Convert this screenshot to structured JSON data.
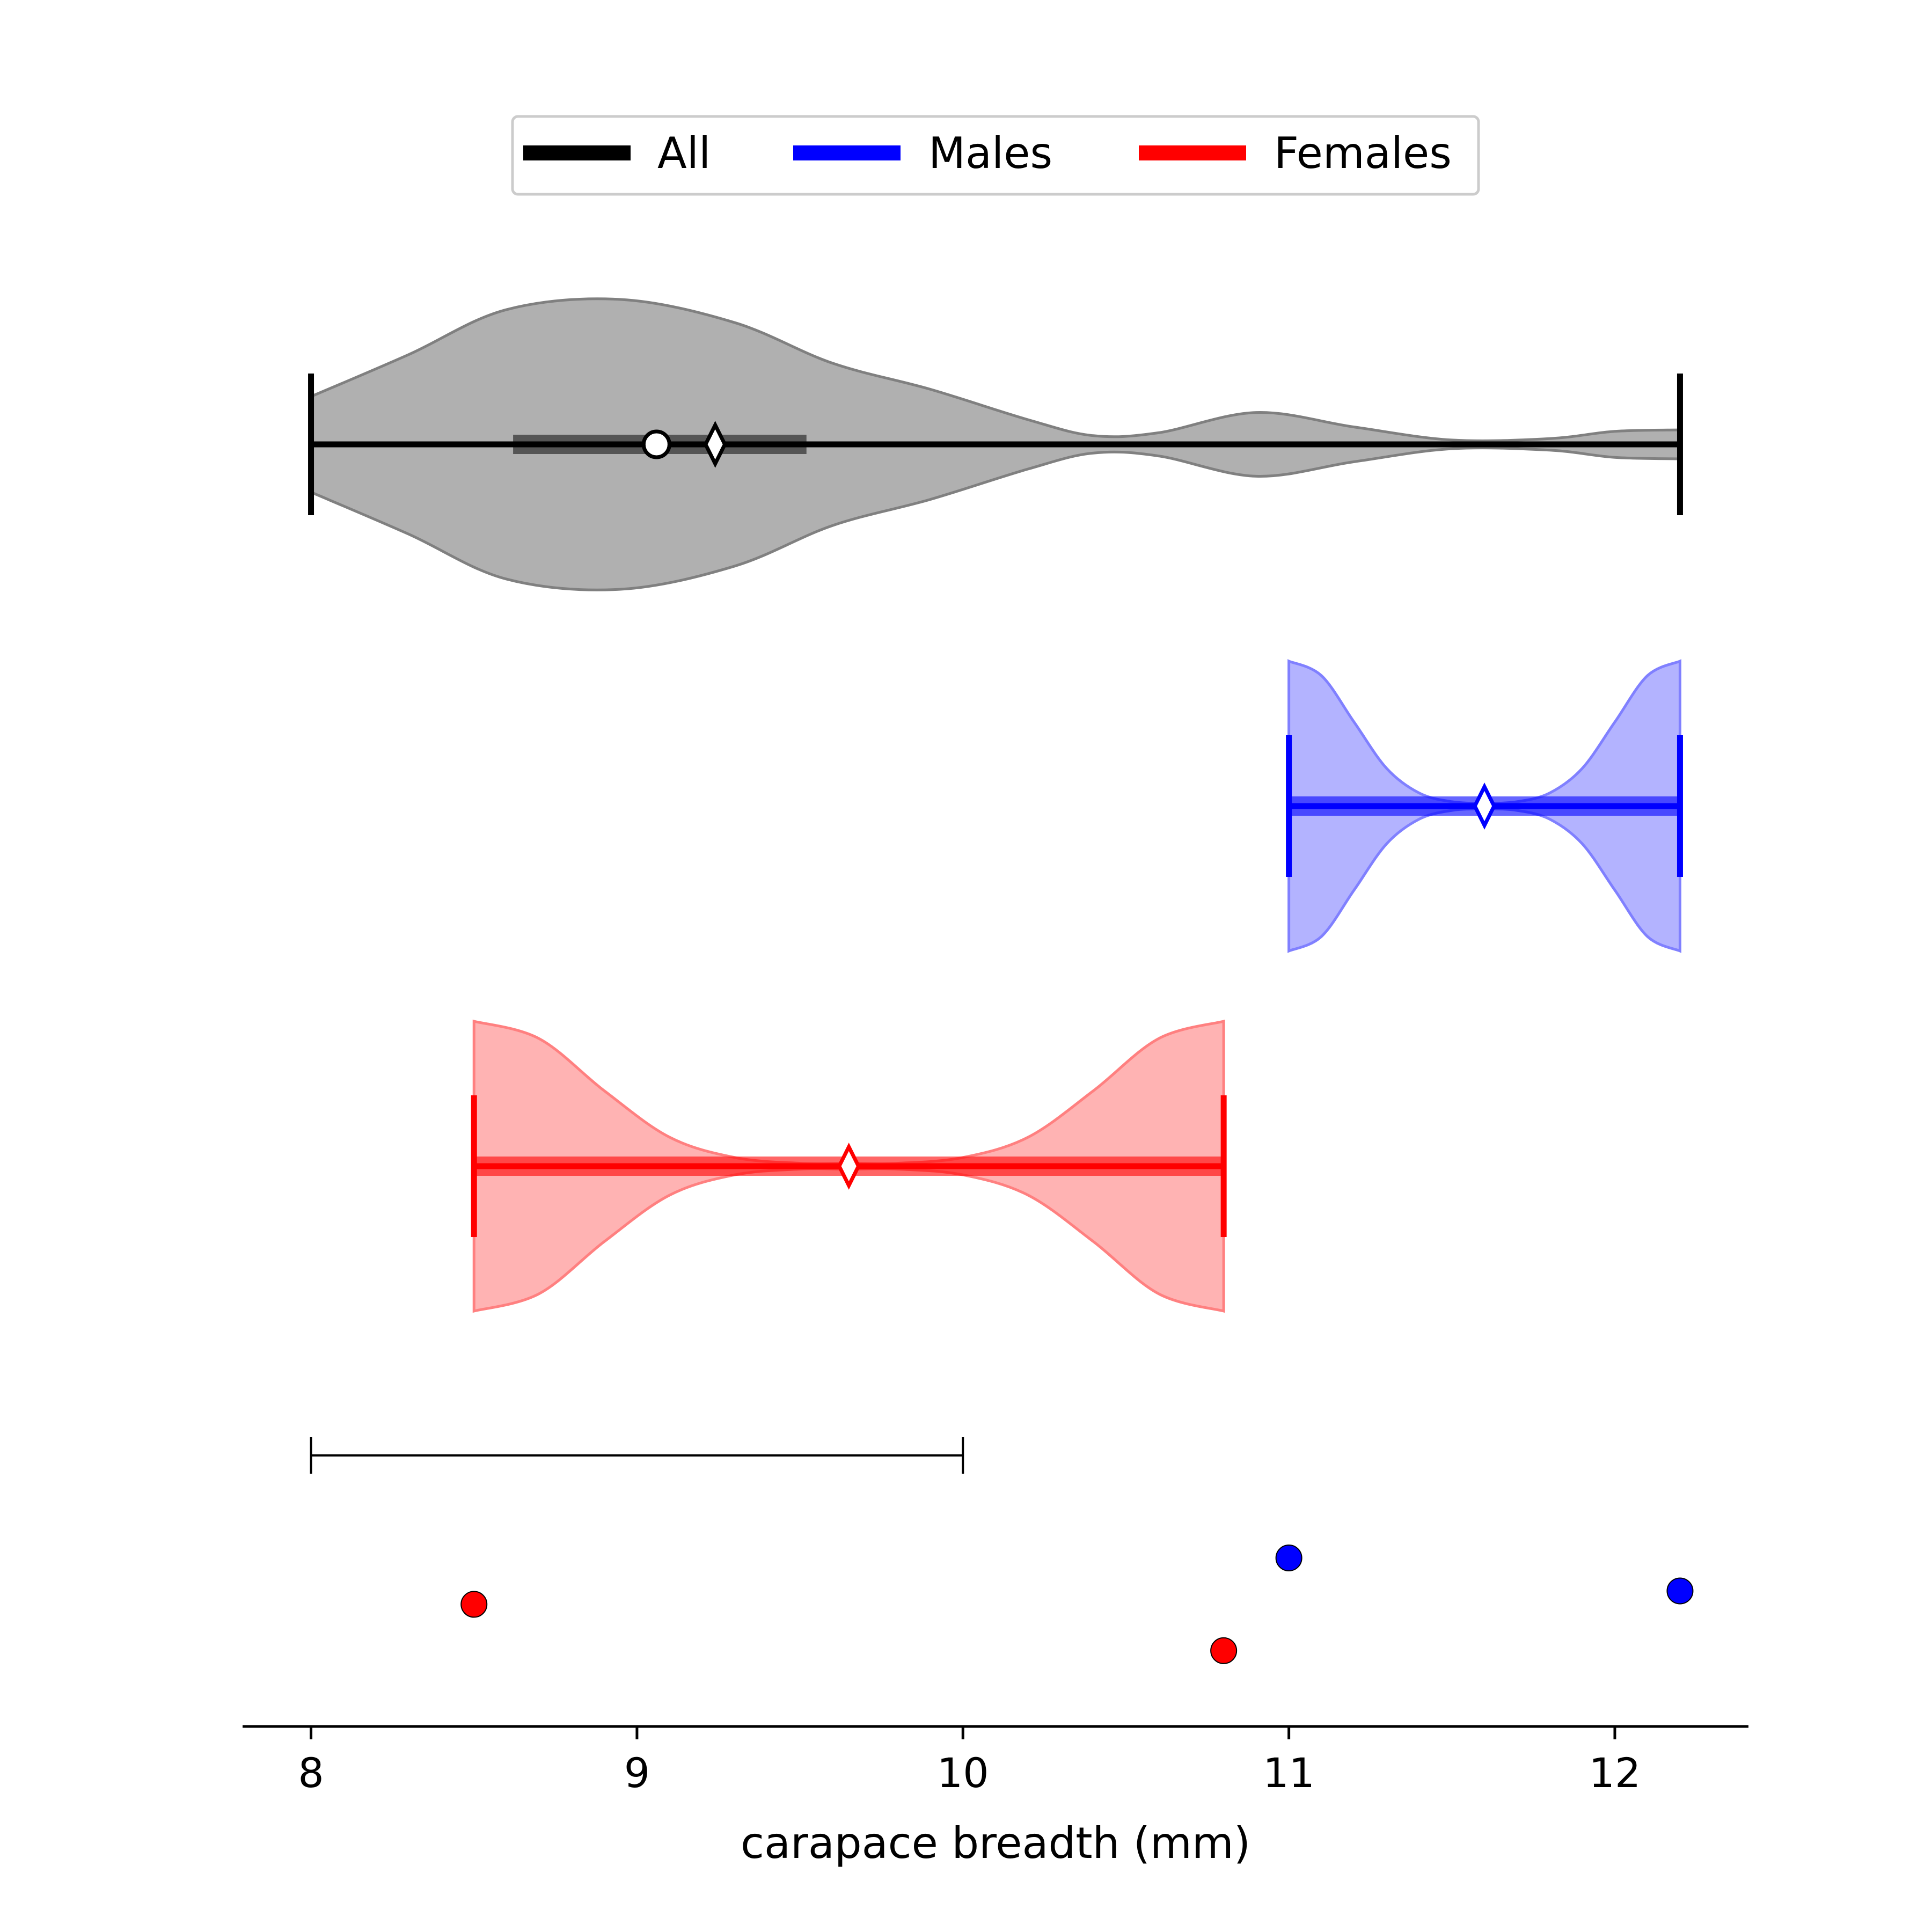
{
  "chart_data": {
    "type": "violin",
    "orientation": "horizontal",
    "xlabel": "carapace breadth (mm)",
    "xlim": [
      7.79,
      12.41
    ],
    "xticks": [
      8,
      9,
      10,
      11,
      12
    ],
    "grid": false,
    "legend": {
      "placement": "top-center",
      "entries": [
        {
          "label": "All",
          "color": "#000000"
        },
        {
          "label": "Males",
          "color": "#0000ff"
        },
        {
          "label": "Females",
          "color": "#ff0000"
        }
      ]
    },
    "violins": [
      {
        "group": "All",
        "color": "#000000",
        "fill_color": "#b0b0b0",
        "edge_color": "#808080",
        "min": 8.0,
        "max": 12.2,
        "median": 9.06,
        "mean": 9.24,
        "q1": 8.62,
        "q3": 9.52,
        "density_x": [
          8.0,
          8.3,
          8.6,
          8.95,
          9.3,
          9.6,
          9.9,
          10.2,
          10.4,
          10.6,
          10.9,
          11.2,
          11.5,
          11.8,
          12.0,
          12.2
        ],
        "density_halfwidth": [
          0.33,
          0.62,
          0.93,
          1.0,
          0.84,
          0.56,
          0.38,
          0.17,
          0.06,
          0.08,
          0.22,
          0.12,
          0.03,
          0.04,
          0.09,
          0.1
        ]
      },
      {
        "group": "Males",
        "color": "#0000ff",
        "fill_color": "#b3b3ff",
        "edge_color": "#8080ff",
        "min": 11.0,
        "max": 12.2,
        "median": 11.6,
        "mean": 11.6,
        "q1": 11.0,
        "q3": 12.2,
        "density_x": [
          11.0,
          11.1,
          11.2,
          11.3,
          11.4,
          11.5,
          11.6,
          11.7,
          11.8,
          11.9,
          12.0,
          12.1,
          12.2
        ],
        "density_halfwidth": [
          1.0,
          0.9,
          0.58,
          0.26,
          0.09,
          0.03,
          0.02,
          0.03,
          0.09,
          0.26,
          0.58,
          0.9,
          1.0
        ]
      },
      {
        "group": "Females",
        "color": "#ff0000",
        "fill_color": "#ffb3b3",
        "edge_color": "#ff8080",
        "min": 8.5,
        "max": 10.8,
        "median": 9.65,
        "mean": 9.65,
        "q1": 8.5,
        "q3": 10.8,
        "density_x": [
          8.5,
          8.7,
          8.9,
          9.1,
          9.3,
          9.5,
          9.65,
          9.8,
          10.0,
          10.2,
          10.4,
          10.6,
          10.8
        ],
        "density_halfwidth": [
          1.0,
          0.88,
          0.52,
          0.2,
          0.06,
          0.02,
          0.02,
          0.02,
          0.06,
          0.2,
          0.52,
          0.88,
          1.0
        ]
      }
    ],
    "range_bar": {
      "start": 8.0,
      "end": 10.0,
      "color": "#000000"
    },
    "points": [
      {
        "x": 8.5,
        "group": "Females",
        "color": "#ff0000",
        "row": 0.55
      },
      {
        "x": 10.8,
        "group": "Females",
        "color": "#ff0000",
        "row": 0.1
      },
      {
        "x": 11.0,
        "group": "Males",
        "color": "#0000ff",
        "row": 1.0
      },
      {
        "x": 12.2,
        "group": "Males",
        "color": "#0000ff",
        "row": 0.68
      }
    ]
  }
}
